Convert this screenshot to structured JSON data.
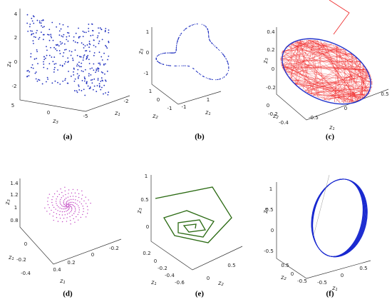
{
  "panels": [
    {
      "caption": "(a)",
      "labels": [
        {
          "base": "z",
          "sub": "4"
        },
        {
          "base": "z",
          "sub": "3"
        },
        {
          "base": "z",
          "sub": "1"
        }
      ],
      "ticks": [
        "4",
        "2",
        "0",
        "-2",
        "5",
        "0",
        "-5",
        "-2"
      ]
    },
    {
      "caption": "(b)",
      "labels": [
        {
          "base": "z",
          "sub": "3"
        },
        {
          "base": "z",
          "sub": "2"
        },
        {
          "base": "z",
          "sub": "1"
        }
      ],
      "ticks": [
        "1",
        "0",
        "-1",
        "1",
        "0",
        "-1",
        "-1",
        "1"
      ]
    },
    {
      "caption": "(c)",
      "labels": [
        {
          "base": "z",
          "sub": "3"
        },
        {
          "base": "z",
          "sub": "2"
        },
        {
          "base": "z",
          "sub": "1"
        }
      ],
      "ticks": [
        "0.4",
        "0.2",
        "0",
        "-0.2",
        "0",
        "-0.2",
        "-0.4",
        "-0.5",
        "0",
        "0.5"
      ]
    },
    {
      "caption": "(d)",
      "labels": [
        {
          "base": "z",
          "sub": "3"
        },
        {
          "base": "z",
          "sub": "1"
        },
        {
          "base": "z",
          "sub": "1"
        }
      ],
      "ticks": [
        "1.4",
        "1.2",
        "1",
        "0.8",
        "0",
        "-0.2",
        "-0.4",
        "0.4",
        "0.2",
        "0",
        "-0.2"
      ]
    },
    {
      "caption": "(e)",
      "labels": [
        {
          "base": "z",
          "sub": "3"
        },
        {
          "base": "z",
          "sub": "1"
        },
        {
          "base": "z",
          "sub": "2"
        }
      ],
      "ticks": [
        "1",
        "0.5",
        "0",
        "0.2",
        "0",
        "-0.2",
        "-0.4",
        "-0.6",
        "0",
        "0.5"
      ]
    },
    {
      "caption": "(f)",
      "labels": [
        {
          "base": "z",
          "sub": "3"
        },
        {
          "base": "z",
          "sub": "2"
        },
        {
          "base": "z",
          "sub": "1"
        }
      ],
      "ticks": [
        "1",
        "0.5",
        "0",
        "-0.5",
        "0.5",
        "0",
        "-0.5",
        "-0.5",
        "0",
        "0.5"
      ]
    }
  ]
}
